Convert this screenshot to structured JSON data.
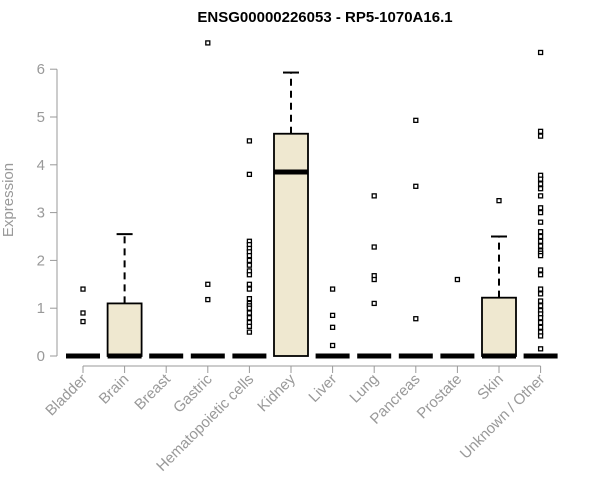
{
  "chart_data": {
    "type": "boxplot",
    "title": "ENSG00000226053 - RP5-1070A16.1",
    "xlabel": "",
    "ylabel": "Expression",
    "ylim": [
      0,
      6.6
    ],
    "yticks": [
      0,
      1,
      2,
      3,
      4,
      5,
      6
    ],
    "grid": false,
    "legend": "none",
    "colors": {
      "box_fill": "#EFE8D0",
      "stroke": "#000000",
      "axis_text": "#999999"
    },
    "categories": [
      "Bladder",
      "Brain",
      "Breast",
      "Gastric",
      "Hematopoietic cells",
      "Kidney",
      "Liver",
      "Lung",
      "Pancreas",
      "Prostate",
      "Skin",
      "Unknown / Other"
    ],
    "boxes": [
      {
        "q1": 0,
        "median": 0,
        "q3": 0,
        "whisker_low": 0,
        "whisker_high": 0,
        "outliers": [
          1.4,
          0.9,
          0.72
        ]
      },
      {
        "q1": 0,
        "median": 0,
        "q3": 1.1,
        "whisker_low": 0,
        "whisker_high": 2.55,
        "outliers": []
      },
      {
        "q1": 0,
        "median": 0,
        "q3": 0,
        "whisker_low": 0,
        "whisker_high": 0,
        "outliers": []
      },
      {
        "q1": 0,
        "median": 0,
        "q3": 0,
        "whisker_low": 0,
        "whisker_high": 0,
        "outliers": [
          6.55,
          1.5,
          1.18
        ]
      },
      {
        "q1": 0,
        "median": 0,
        "q3": 0,
        "whisker_low": 0,
        "whisker_high": 0,
        "outliers": [
          4.5,
          3.8,
          2.4,
          2.33,
          2.25,
          2.18,
          2.1,
          2.0,
          1.9,
          1.78,
          1.7,
          1.5,
          1.4,
          1.2,
          1.1,
          1.05,
          1.0,
          0.9,
          0.8,
          0.7,
          0.62,
          0.5
        ]
      },
      {
        "q1": 0,
        "median": 3.85,
        "q3": 4.65,
        "whisker_low": 0,
        "whisker_high": 5.93,
        "outliers": []
      },
      {
        "q1": 0,
        "median": 0,
        "q3": 0,
        "whisker_low": 0,
        "whisker_high": 0,
        "outliers": [
          1.4,
          0.85,
          0.6,
          0.22
        ]
      },
      {
        "q1": 0,
        "median": 0,
        "q3": 0,
        "whisker_low": 0,
        "whisker_high": 0,
        "outliers": [
          3.35,
          2.28,
          1.68,
          1.6,
          1.1
        ]
      },
      {
        "q1": 0,
        "median": 0,
        "q3": 0,
        "whisker_low": 0,
        "whisker_high": 0,
        "outliers": [
          4.93,
          3.55,
          0.78
        ]
      },
      {
        "q1": 0,
        "median": 0,
        "q3": 0,
        "whisker_low": 0,
        "whisker_high": 0,
        "outliers": [
          1.6
        ]
      },
      {
        "q1": 0,
        "median": 0,
        "q3": 1.22,
        "whisker_low": 0,
        "whisker_high": 2.5,
        "outliers": [
          3.25
        ]
      },
      {
        "q1": 0,
        "median": 0,
        "q3": 0,
        "whisker_low": 0,
        "whisker_high": 0,
        "outliers": [
          6.35,
          4.7,
          4.6,
          3.78,
          3.7,
          3.6,
          3.5,
          3.35,
          3.1,
          3.0,
          2.8,
          2.6,
          2.5,
          2.4,
          2.3,
          2.2,
          2.15,
          2.1,
          1.8,
          1.7,
          1.4,
          1.3,
          1.15,
          1.05,
          0.95,
          0.88,
          0.8,
          0.7,
          0.6,
          0.5,
          0.42,
          0.15
        ]
      }
    ]
  }
}
